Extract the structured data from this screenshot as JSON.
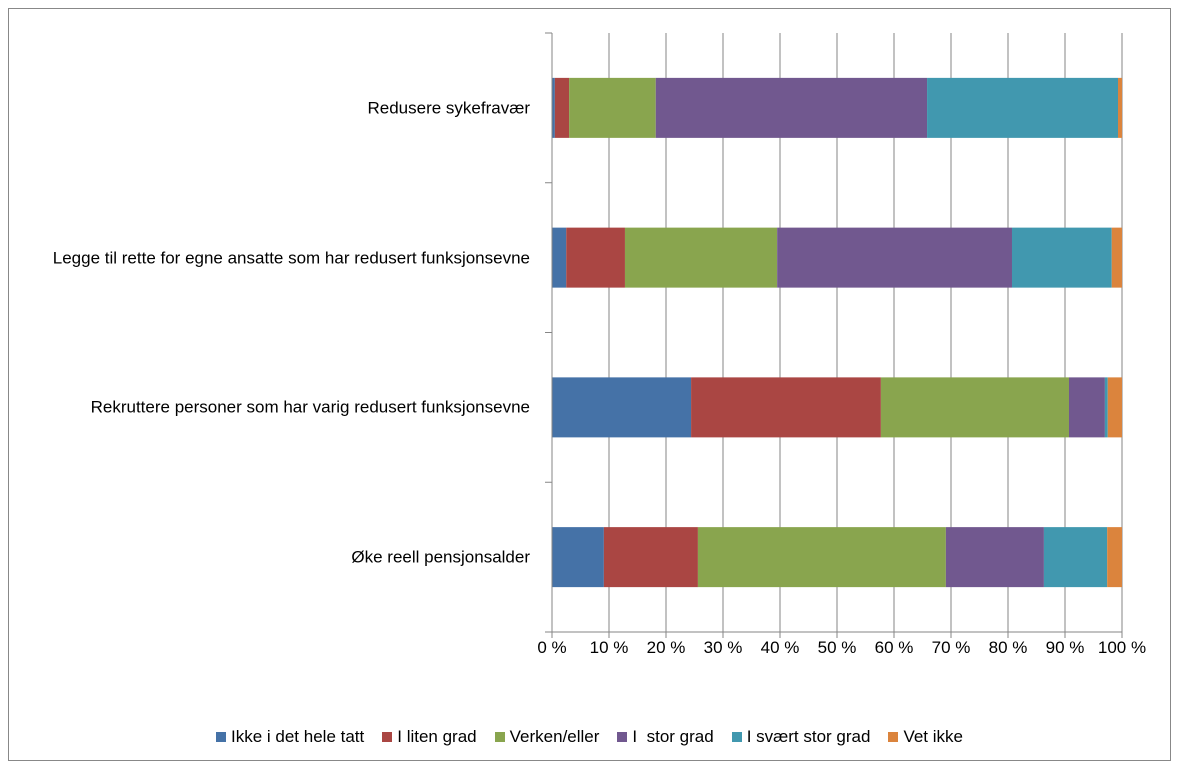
{
  "chart_data": {
    "type": "stacked-bar-horizontal",
    "categories": [
      "Redusere sykefravær",
      "Legge til rette for egne ansatte som har redusert funksjonsevne",
      "Rekruttere personer som har varig redusert funksjonsevne",
      "Øke reell pensjonsalder"
    ],
    "series": [
      {
        "name": "Ikke i det hele tatt",
        "color": "#4572a7",
        "values": [
          0.5,
          2.5,
          24.4,
          9.1
        ]
      },
      {
        "name": "I liten grad",
        "color": "#aa4643",
        "values": [
          2.5,
          10.3,
          33.3,
          16.5
        ]
      },
      {
        "name": "Verken/eller",
        "color": "#89a54e",
        "values": [
          15.2,
          26.7,
          33.0,
          43.5
        ]
      },
      {
        "name": "I  stor grad",
        "color": "#71588f",
        "values": [
          47.6,
          41.2,
          6.3,
          17.2
        ]
      },
      {
        "name": "I svært stor grad",
        "color": "#4198af",
        "values": [
          33.5,
          17.5,
          0.5,
          11.1
        ]
      },
      {
        "name": "Vet ikke",
        "color": "#db843d",
        "values": [
          0.7,
          1.8,
          2.5,
          2.6
        ]
      }
    ],
    "xlim": [
      0,
      100
    ],
    "xticks": [
      {
        "value": 0,
        "label": "0 %"
      },
      {
        "value": 10,
        "label": "10 %"
      },
      {
        "value": 20,
        "label": "20 %"
      },
      {
        "value": 30,
        "label": "30 %"
      },
      {
        "value": 40,
        "label": "40 %"
      },
      {
        "value": 50,
        "label": "50 %"
      },
      {
        "value": 60,
        "label": "60 %"
      },
      {
        "value": 70,
        "label": "70 %"
      },
      {
        "value": 80,
        "label": "80 %"
      },
      {
        "value": 90,
        "label": "90 %"
      },
      {
        "value": 100,
        "label": "100 %"
      }
    ],
    "grid": true,
    "legend": "bottom"
  }
}
